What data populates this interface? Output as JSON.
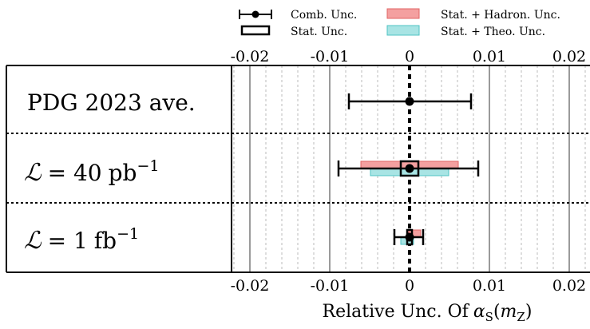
{
  "chart_data": {
    "type": "errorbar",
    "xlabel": "Relative Unc. Of",
    "xlabel_symbol": "α",
    "xlabel_sub": "S",
    "xlabel_arg_open": "(",
    "xlabel_arg": "m",
    "xlabel_arg_sub": "Z",
    "xlabel_arg_close": ")",
    "xlim": [
      -0.025,
      0.025
    ],
    "ticks": [
      -0.02,
      -0.01,
      0,
      0.01,
      0.02
    ],
    "tick_labels": [
      "-0.02",
      "-0.01",
      "0",
      "0.01",
      "0.02"
    ],
    "grid": {
      "major": true,
      "minor": true,
      "minor_step": 0.002
    },
    "center_line": "dashed",
    "legend": [
      {
        "label": "Comb. Unc.",
        "style": "errorbar"
      },
      {
        "label": "Stat. Unc.",
        "style": "open-box"
      },
      {
        "label": "Stat. + Hadron. Unc.",
        "style": "fill",
        "color": "#f08080"
      },
      {
        "label": "Stat. + Theo. Unc.",
        "style": "fill",
        "color": "#7fd4d4"
      }
    ],
    "rows": [
      {
        "label": "PDG 2023 ave.",
        "central": 0,
        "comb": [
          -0.0076,
          0.0077
        ]
      },
      {
        "label_symbol": "ℒ",
        "label_eq": "= 40",
        "label_unit": "pb",
        "label_exp": "−1",
        "central": 0,
        "comb": [
          -0.0089,
          0.0086
        ],
        "stat": [
          -0.0011,
          0.0011
        ],
        "stat_hadron": [
          -0.0061,
          0.0061
        ],
        "stat_theo": [
          -0.0049,
          0.0049
        ]
      },
      {
        "label_symbol": "ℒ",
        "label_eq": "= 1",
        "label_unit": "fb",
        "label_exp": "−1",
        "central": 0,
        "comb": [
          -0.0019,
          0.0017
        ],
        "stat": [
          -0.0003,
          0.0003
        ],
        "stat_hadron": [
          -0.0001,
          0.0014
        ],
        "stat_theo": [
          -0.0011,
          0.0005
        ]
      }
    ],
    "colors": {
      "hadron_fill": "#f4a0a0",
      "hadron_edge": "#e06666",
      "theo_fill": "#a8e4e4",
      "theo_edge": "#4fc3c3"
    }
  }
}
